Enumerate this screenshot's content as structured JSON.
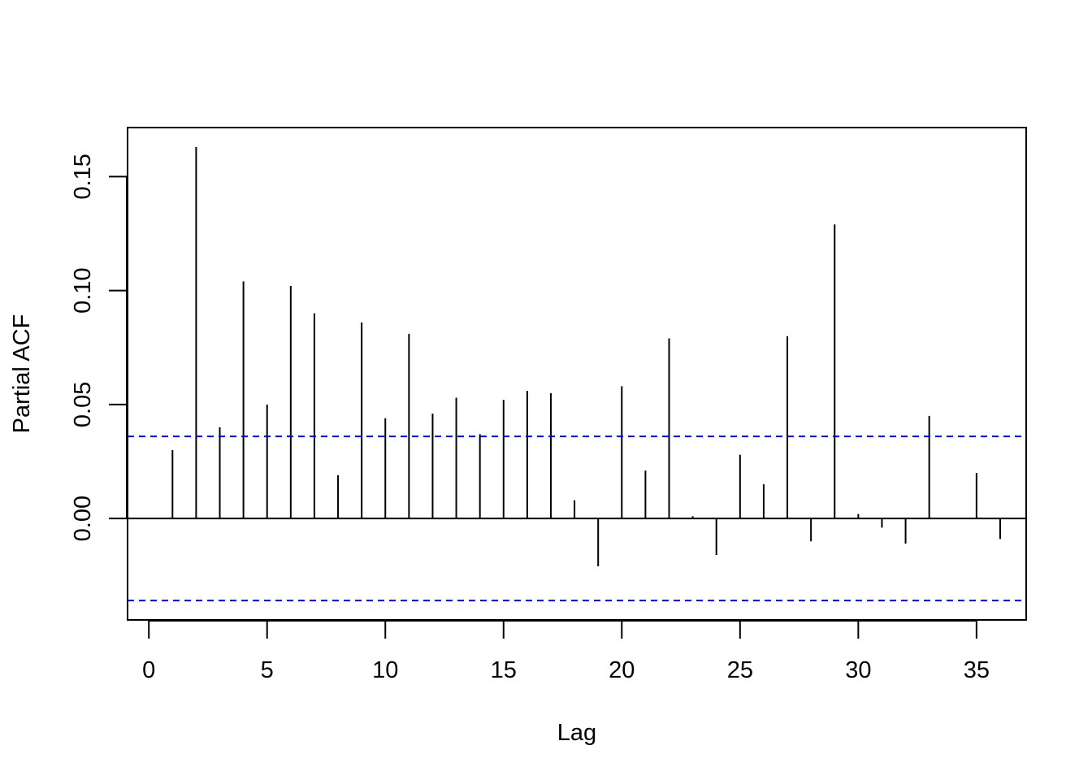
{
  "chart_data": {
    "type": "bar",
    "title": "",
    "xlabel": "Lag",
    "ylabel": "Partial ACF",
    "x": [
      1,
      2,
      3,
      4,
      5,
      6,
      7,
      8,
      9,
      10,
      11,
      12,
      13,
      14,
      15,
      16,
      17,
      18,
      19,
      20,
      21,
      22,
      23,
      24,
      25,
      26,
      27,
      28,
      29,
      30,
      31,
      32,
      33,
      34,
      35,
      36
    ],
    "values": [
      0.03,
      0.163,
      0.04,
      0.104,
      0.05,
      0.102,
      0.09,
      0.019,
      0.086,
      0.044,
      0.081,
      0.046,
      0.053,
      0.037,
      0.052,
      0.056,
      0.055,
      0.008,
      -0.021,
      0.058,
      0.021,
      0.079,
      0.001,
      -0.016,
      0.028,
      0.015,
      0.08,
      -0.01,
      0.129,
      0.002,
      -0.004,
      -0.011,
      0.045,
      0.0,
      0.02,
      -0.009
    ],
    "xlim": [
      -0.9,
      37.1
    ],
    "ylim": [
      -0.0445,
      0.1715
    ],
    "xticks": [
      0,
      5,
      10,
      15,
      20,
      25,
      30,
      35
    ],
    "xtick_labels": [
      "0",
      "5",
      "10",
      "15",
      "20",
      "25",
      "30",
      "35"
    ],
    "yticks": [
      0.0,
      0.05,
      0.1,
      0.15
    ],
    "ytick_labels": [
      "0.00",
      "0.05",
      "0.10",
      "0.15"
    ],
    "confidence_band": 0.036,
    "zero_line": 0,
    "colors": {
      "bars": "#000000",
      "confidence": "#0000ff",
      "frame": "#000000"
    },
    "grid": false,
    "legend": "none"
  }
}
